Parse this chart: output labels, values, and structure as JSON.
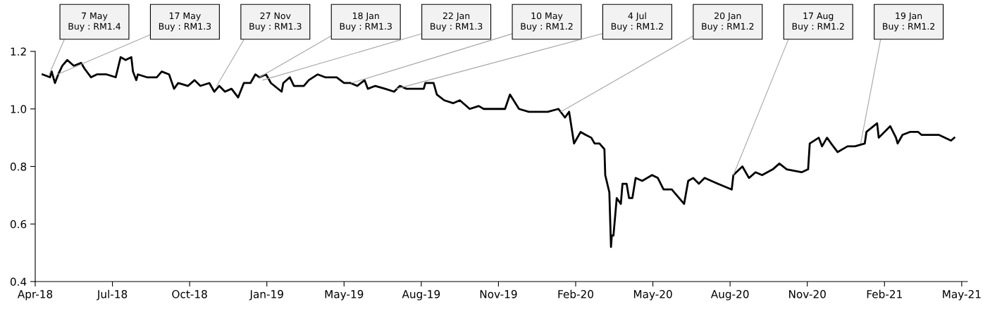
{
  "chart_data": {
    "type": "line",
    "x": [
      "2018-04-29",
      "2018-05-08",
      "2018-05-10",
      "2018-05-14",
      "2018-05-18",
      "2018-05-23",
      "2018-05-29",
      "2018-06-06",
      "2018-06-15",
      "2018-06-19",
      "2018-06-27",
      "2018-07-04",
      "2018-07-16",
      "2018-07-27",
      "2018-08-02",
      "2018-08-08",
      "2018-08-15",
      "2018-08-17",
      "2018-08-21",
      "2018-08-23",
      "2018-09-03",
      "2018-09-15",
      "2018-09-21",
      "2018-09-30",
      "2018-10-06",
      "2018-10-11",
      "2018-10-23",
      "2018-10-31",
      "2018-11-07",
      "2018-11-18",
      "2018-11-24",
      "2018-11-30",
      "2018-12-07",
      "2018-12-15",
      "2018-12-23",
      "2018-12-30",
      "2019-01-07",
      "2019-01-13",
      "2019-01-18",
      "2019-01-26",
      "2019-02-01",
      "2019-02-14",
      "2019-02-16",
      "2019-02-24",
      "2019-03-01",
      "2019-03-13",
      "2019-03-19",
      "2019-03-30",
      "2019-04-08",
      "2019-04-22",
      "2019-05-01",
      "2019-05-09",
      "2019-05-17",
      "2019-05-26",
      "2019-05-30",
      "2019-06-08",
      "2019-06-20",
      "2019-07-01",
      "2019-07-08",
      "2019-07-16",
      "2019-08-06",
      "2019-08-08",
      "2019-08-18",
      "2019-08-22",
      "2019-08-31",
      "2019-09-11",
      "2019-09-19",
      "2019-10-01",
      "2019-10-12",
      "2019-10-18",
      "2019-10-26",
      "2019-11-13",
      "2019-11-19",
      "2019-11-30",
      "2019-12-12",
      "2020-01-04",
      "2020-01-17",
      "2020-01-25",
      "2020-01-30",
      "2020-02-05",
      "2020-02-13",
      "2020-02-19",
      "2020-02-26",
      "2020-03-01",
      "2020-03-07",
      "2020-03-13",
      "2020-03-14",
      "2020-03-19",
      "2020-03-21",
      "2020-03-22",
      "2020-03-24",
      "2020-03-28",
      "2020-04-02",
      "2020-04-04",
      "2020-04-09",
      "2020-04-12",
      "2020-04-16",
      "2020-04-20",
      "2020-04-28",
      "2020-05-10",
      "2020-05-17",
      "2020-05-24",
      "2020-06-03",
      "2020-06-09",
      "2020-06-18",
      "2020-06-23",
      "2020-06-29",
      "2020-07-06",
      "2020-07-13",
      "2020-07-29",
      "2020-08-15",
      "2020-08-17",
      "2020-08-28",
      "2020-09-05",
      "2020-09-13",
      "2020-09-21",
      "2020-10-04",
      "2020-10-12",
      "2020-10-21",
      "2020-11-08",
      "2020-11-16",
      "2020-11-18",
      "2020-11-29",
      "2020-12-03",
      "2020-12-09",
      "2020-12-14",
      "2020-12-22",
      "2021-01-03",
      "2021-01-12",
      "2021-01-24",
      "2021-01-26",
      "2021-02-08",
      "2021-02-10",
      "2021-02-24",
      "2021-03-03",
      "2021-03-05",
      "2021-03-11",
      "2021-03-20",
      "2021-03-30",
      "2021-04-03",
      "2021-04-24",
      "2021-05-09",
      "2021-05-13"
    ],
    "series": [
      {
        "color": "#000000",
        "values": [
          1.12,
          1.11,
          1.13,
          1.09,
          1.12,
          1.15,
          1.17,
          1.15,
          1.16,
          1.14,
          1.11,
          1.12,
          1.12,
          1.11,
          1.18,
          1.17,
          1.18,
          1.13,
          1.1,
          1.12,
          1.11,
          1.11,
          1.13,
          1.12,
          1.07,
          1.09,
          1.08,
          1.1,
          1.08,
          1.09,
          1.06,
          1.08,
          1.06,
          1.07,
          1.04,
          1.09,
          1.09,
          1.12,
          1.11,
          1.12,
          1.09,
          1.06,
          1.09,
          1.11,
          1.08,
          1.08,
          1.1,
          1.12,
          1.11,
          1.11,
          1.09,
          1.09,
          1.08,
          1.1,
          1.07,
          1.08,
          1.07,
          1.06,
          1.08,
          1.07,
          1.07,
          1.09,
          1.09,
          1.05,
          1.03,
          1.02,
          1.03,
          1.0,
          1.01,
          1.0,
          1.0,
          1.0,
          1.05,
          1.0,
          0.99,
          0.99,
          1.0,
          0.97,
          0.99,
          0.88,
          0.92,
          0.91,
          0.9,
          0.88,
          0.88,
          0.86,
          0.77,
          0.71,
          0.52,
          0.56,
          0.56,
          0.69,
          0.67,
          0.74,
          0.74,
          0.69,
          0.69,
          0.76,
          0.75,
          0.77,
          0.76,
          0.72,
          0.72,
          0.7,
          0.67,
          0.75,
          0.76,
          0.74,
          0.76,
          0.74,
          0.72,
          0.77,
          0.8,
          0.76,
          0.78,
          0.77,
          0.79,
          0.81,
          0.79,
          0.78,
          0.79,
          0.88,
          0.9,
          0.87,
          0.9,
          0.88,
          0.85,
          0.87,
          0.87,
          0.88,
          0.92,
          0.95,
          0.9,
          0.94,
          0.9,
          0.88,
          0.91,
          0.92,
          0.92,
          0.91,
          0.91,
          0.89,
          0.9
        ]
      }
    ],
    "xlim": [
      "2018-04-20",
      "2021-05-29"
    ],
    "xticks": [
      {
        "value": "2018-04-20",
        "label": "Apr-18"
      },
      {
        "value": "2018-07-23",
        "label": "Jul-18"
      },
      {
        "value": "2018-10-25",
        "label": "Oct-18"
      },
      {
        "value": "2019-01-27",
        "label": "Jan-19"
      },
      {
        "value": "2019-05-01",
        "label": "May-19"
      },
      {
        "value": "2019-08-03",
        "label": "Aug-19"
      },
      {
        "value": "2019-11-05",
        "label": "Nov-19"
      },
      {
        "value": "2020-02-07",
        "label": "Feb-20"
      },
      {
        "value": "2020-05-11",
        "label": "May-20"
      },
      {
        "value": "2020-08-13",
        "label": "Aug-20"
      },
      {
        "value": "2020-11-15",
        "label": "Nov-20"
      },
      {
        "value": "2021-02-17",
        "label": "Feb-21"
      },
      {
        "value": "2021-05-22",
        "label": "May-21"
      }
    ],
    "ylim": [
      0.4,
      1.2
    ],
    "yticks": [
      0.4,
      0.6,
      0.8,
      {
        "value": 1.0,
        "label": "1.0"
      },
      1.2
    ],
    "grid": false,
    "line_style": "solid",
    "annotations": [
      {
        "text": "7 May\nBuy : RM1.4",
        "x": "2018-05-07",
        "y": 1.12
      },
      {
        "text": "17 May\nBuy : RM1.3",
        "x": "2018-05-17",
        "y": 1.12
      },
      {
        "text": "27 Nov\nBuy : RM1.3",
        "x": "2018-11-27",
        "y": 1.08
      },
      {
        "text": "18 Jan\nBuy : RM1.3",
        "x": "2019-01-18",
        "y": 1.11
      },
      {
        "text": "22 Jan\nBuy : RM1.3",
        "x": "2019-01-22",
        "y": 1.1
      },
      {
        "text": "10 May\nBuy : RM1.2",
        "x": "2019-05-10",
        "y": 1.09
      },
      {
        "text": "4 Jul\nBuy : RM1.2",
        "x": "2019-07-04",
        "y": 1.07
      },
      {
        "text": "20 Jan\nBuy : RM1.2",
        "x": "2020-01-20",
        "y": 0.99
      },
      {
        "text": "17 Aug\nBuy : RM1.2",
        "x": "2020-08-17",
        "y": 0.77
      },
      {
        "text": "19 Jan\nBuy : RM1.2",
        "x": "2021-01-19",
        "y": 0.88
      }
    ]
  }
}
